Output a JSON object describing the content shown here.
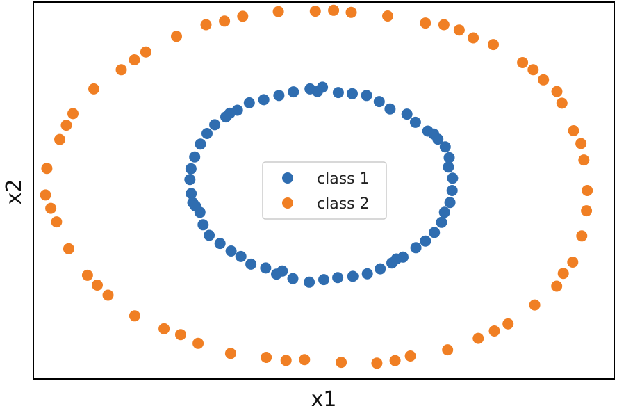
{
  "chart_data": {
    "type": "scatter",
    "xlabel": "x1",
    "ylabel": "x2",
    "xlim": [
      -1.1,
      1.1
    ],
    "ylim": [
      -1.1,
      1.1
    ],
    "ticks": "hidden",
    "grid": false,
    "legend": "center",
    "series": [
      {
        "name": "class 1",
        "color": "#2f6db0",
        "points": [
          [
            0.486,
            0.0
          ],
          [
            0.472,
            0.137
          ],
          [
            0.46,
            0.255
          ],
          [
            0.394,
            0.347
          ],
          [
            0.315,
            0.446
          ],
          [
            0.21,
            0.519
          ],
          [
            0.108,
            0.565
          ],
          [
            -0.005,
            0.603
          ],
          [
            -0.115,
            0.576
          ],
          [
            -0.227,
            0.53
          ],
          [
            -0.327,
            0.469
          ],
          [
            -0.413,
            0.384
          ],
          [
            -0.467,
            0.271
          ],
          [
            -0.503,
            0.127
          ],
          [
            -0.502,
            -0.018
          ],
          [
            -0.469,
            -0.127
          ],
          [
            -0.434,
            -0.262
          ],
          [
            -0.351,
            -0.353
          ],
          [
            -0.276,
            -0.43
          ],
          [
            -0.179,
            -0.488
          ],
          [
            -0.055,
            -0.535
          ],
          [
            0.053,
            -0.508
          ],
          [
            0.165,
            -0.486
          ],
          [
            0.258,
            -0.423
          ],
          [
            0.349,
            -0.334
          ],
          [
            0.419,
            -0.245
          ],
          [
            0.457,
            -0.127
          ],
          [
            0.488,
            0.072
          ],
          [
            0.475,
            0.192
          ],
          [
            0.432,
            0.3
          ],
          [
            0.347,
            0.398
          ],
          [
            0.251,
            0.476
          ],
          [
            0.162,
            0.555
          ],
          [
            0.055,
            0.572
          ],
          [
            -0.052,
            0.593
          ],
          [
            -0.17,
            0.555
          ],
          [
            -0.282,
            0.512
          ],
          [
            -0.371,
            0.43
          ],
          [
            -0.442,
            0.333
          ],
          [
            -0.489,
            0.196
          ],
          [
            -0.507,
            0.064
          ],
          [
            -0.496,
            -0.071
          ],
          [
            -0.457,
            -0.2
          ],
          [
            -0.393,
            -0.309
          ],
          [
            -0.314,
            -0.385
          ],
          [
            -0.22,
            -0.452
          ],
          [
            -0.117,
            -0.514
          ],
          [
            0.0,
            -0.52
          ],
          [
            0.11,
            -0.501
          ],
          [
            0.214,
            -0.457
          ],
          [
            0.3,
            -0.389
          ],
          [
            0.385,
            -0.295
          ],
          [
            0.446,
            -0.186
          ],
          [
            0.478,
            -0.07
          ],
          [
            0.416,
            0.33
          ],
          [
            -0.024,
            0.578
          ],
          [
            -0.356,
            0.451
          ],
          [
            -0.486,
            -0.09
          ],
          [
            -0.157,
            -0.47
          ],
          [
            0.275,
            -0.4
          ]
        ]
      },
      {
        "name": "class 2",
        "color": "#f07f24",
        "points": [
          [
            0.998,
            0.0
          ],
          [
            0.985,
            0.178
          ],
          [
            0.946,
            0.349
          ],
          [
            0.902,
            0.51
          ],
          [
            0.832,
            0.646
          ],
          [
            0.753,
            0.747
          ],
          [
            0.642,
            0.852
          ],
          [
            0.513,
            0.937
          ],
          [
            0.385,
            0.978
          ],
          [
            0.242,
            1.019
          ],
          [
            0.104,
            1.04
          ],
          [
            -0.032,
            1.047
          ],
          [
            -0.172,
            1.045
          ],
          [
            -0.307,
            1.017
          ],
          [
            -0.446,
            0.968
          ],
          [
            -0.558,
            0.9
          ],
          [
            -0.674,
            0.809
          ],
          [
            -0.767,
            0.705
          ],
          [
            -0.871,
            0.593
          ],
          [
            -0.95,
            0.449
          ],
          [
            -1.0,
            0.298
          ],
          [
            -1.049,
            0.129
          ],
          [
            -1.054,
            -0.026
          ],
          [
            -1.012,
            -0.183
          ],
          [
            -0.966,
            -0.34
          ],
          [
            -0.895,
            -0.495
          ],
          [
            -0.817,
            -0.611
          ],
          [
            -0.716,
            -0.732
          ],
          [
            -0.605,
            -0.807
          ],
          [
            -0.476,
            -0.892
          ],
          [
            -0.353,
            -0.951
          ],
          [
            -0.218,
            -0.974
          ],
          [
            -0.073,
            -0.987
          ],
          [
            0.066,
            -1.003
          ],
          [
            0.201,
            -1.008
          ],
          [
            0.328,
            -0.966
          ],
          [
            0.469,
            -0.93
          ],
          [
            0.585,
            -0.863
          ],
          [
            0.698,
            -0.778
          ],
          [
            0.799,
            -0.668
          ],
          [
            0.882,
            -0.558
          ],
          [
            0.943,
            -0.418
          ],
          [
            0.977,
            -0.265
          ],
          [
            0.995,
            -0.118
          ],
          [
            0.974,
            0.274
          ],
          [
            0.793,
            0.705
          ],
          [
            0.455,
            0.968
          ],
          [
            0.037,
            1.052
          ],
          [
            -0.376,
            0.989
          ],
          [
            -0.717,
            0.763
          ],
          [
            -0.975,
            0.381
          ],
          [
            -1.034,
            -0.104
          ],
          [
            -0.858,
            -0.552
          ],
          [
            -0.542,
            -0.841
          ],
          [
            -0.143,
            -0.992
          ],
          [
            0.27,
            -0.993
          ],
          [
            0.646,
            -0.82
          ],
          [
            0.907,
            -0.484
          ],
          [
            0.883,
            0.578
          ],
          [
            0.566,
            0.891
          ]
        ]
      }
    ]
  }
}
